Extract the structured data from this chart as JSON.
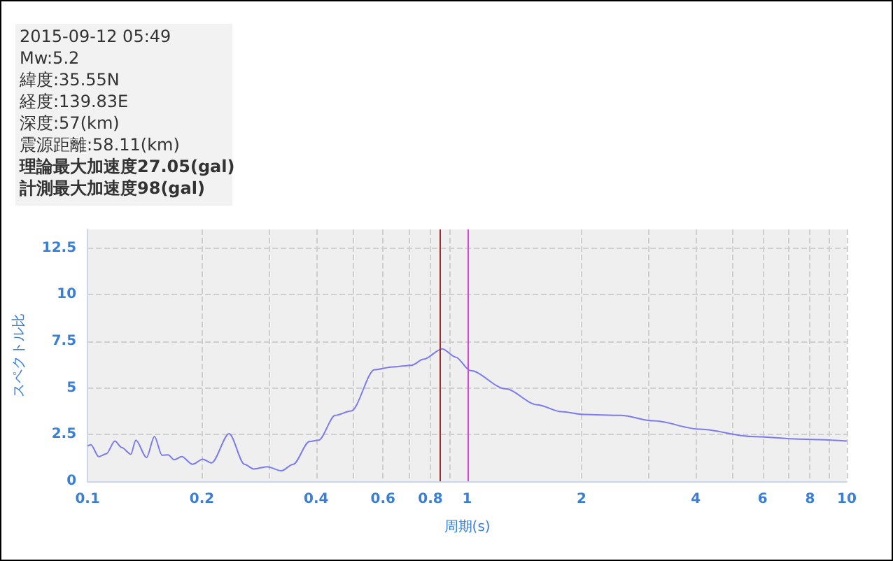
{
  "chart_data": {
    "type": "line",
    "xlabel": "周期(s)",
    "ylabel": "スペクトル比",
    "log": "x",
    "grid": true,
    "marker": "none",
    "line_style": "solid",
    "annotations": [
      "2015-09-12 05:49",
      "Mw:5.2",
      "緯度:35.55N",
      "経度:139.83E",
      "深度:57(km)",
      "震源距離:58.11(km)",
      "理論最大加速度27.05(gal)",
      "計測最大加速度98(gal)"
    ],
    "xlim": [
      0.1,
      10
    ],
    "ylim": [
      0,
      13.5
    ],
    "xticks": [
      0.1,
      0.2,
      {
        "value": 0.3,
        "label": null
      },
      0.4,
      {
        "value": 0.5,
        "label": null
      },
      0.6,
      {
        "value": 0.7,
        "label": null
      },
      0.8,
      {
        "value": 0.9,
        "label": null
      },
      1,
      2,
      {
        "value": 3,
        "label": null
      },
      4,
      {
        "value": 5,
        "label": null
      },
      6,
      {
        "value": 7,
        "label": null
      },
      8,
      {
        "value": 9,
        "label": null
      },
      10
    ],
    "yticks": [
      0,
      2.5,
      5,
      7.5,
      10,
      12.5
    ],
    "ref_lines": [
      {
        "axis": "x",
        "value": 0.85,
        "label": null,
        "color": "#a52a2a"
      },
      {
        "axis": "x",
        "value": 1,
        "label": null,
        "color": "#e040e0"
      }
    ],
    "series": [
      {
        "color": "#7b7bef",
        "x": [
          0.1,
          0.102,
          0.107,
          0.112,
          0.118,
          0.123,
          0.13,
          0.134,
          0.143,
          0.15,
          0.157,
          0.163,
          0.169,
          0.177,
          0.189,
          0.201,
          0.212,
          0.236,
          0.259,
          0.274,
          0.297,
          0.324,
          0.348,
          0.384,
          0.406,
          0.449,
          0.495,
          0.57,
          0.638,
          0.714,
          0.767,
          0.86,
          0.932,
          1.02,
          1.26,
          1.53,
          1.77,
          2.03,
          2.54,
          3.09,
          4.11,
          5.61,
          7.48,
          10
        ],
        "values": [
          1.89,
          1.96,
          1.32,
          1.47,
          2.16,
          1.81,
          1.45,
          2.2,
          1.27,
          2.4,
          1.4,
          1.42,
          1.15,
          1.32,
          0.91,
          1.18,
          0.98,
          2.55,
          0.91,
          0.66,
          0.78,
          0.56,
          0.91,
          2.13,
          2.2,
          3.53,
          3.77,
          5.98,
          6.13,
          6.22,
          6.54,
          7.1,
          6.66,
          5.93,
          4.96,
          4.1,
          3.73,
          3.58,
          3.53,
          3.24,
          2.79,
          2.4,
          2.26,
          2.16
        ]
      }
    ]
  }
}
